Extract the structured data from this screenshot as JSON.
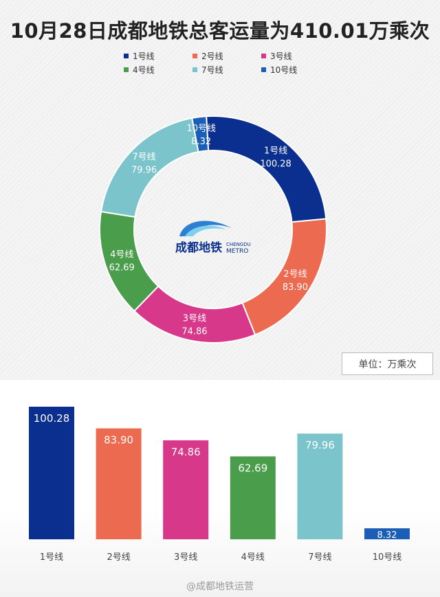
{
  "title": "10月28日成都地铁总客运量为410.01万乘次",
  "unit_label": "单位：万乘次",
  "logo": {
    "text_cn": "成都地铁",
    "text_en_top": "CHENGDU",
    "text_en_bottom": "METRO"
  },
  "watermark": "@成都地铁运营",
  "legend": [
    {
      "label": "1号线",
      "color": "#0b2f8f"
    },
    {
      "label": "2号线",
      "color": "#eb6a50"
    },
    {
      "label": "3号线",
      "color": "#d8388a"
    },
    {
      "label": "4号线",
      "color": "#4a9d4a"
    },
    {
      "label": "7号线",
      "color": "#7cc4cc"
    },
    {
      "label": "10号线",
      "color": "#1a5fb5"
    }
  ],
  "chart_data": [
    {
      "type": "pie",
      "style": "donut",
      "categories": [
        "1号线",
        "2号线",
        "3号线",
        "4号线",
        "7号线",
        "10号线"
      ],
      "values": [
        100.28,
        83.9,
        74.86,
        62.69,
        79.96,
        8.32
      ],
      "colors": [
        "#0b2f8f",
        "#eb6a50",
        "#d8388a",
        "#4a9d4a",
        "#7cc4cc",
        "#1a5fb5"
      ],
      "data_labels": [
        "100.28",
        "83.90",
        "74.86",
        "62.69",
        "79.96",
        "8.32"
      ],
      "legend_position": "top"
    },
    {
      "type": "bar",
      "categories": [
        "1号线",
        "2号线",
        "3号线",
        "4号线",
        "7号线",
        "10号线"
      ],
      "values": [
        100.28,
        83.9,
        74.86,
        62.69,
        79.96,
        8.32
      ],
      "colors": [
        "#0b2f8f",
        "#eb6a50",
        "#d8388a",
        "#4a9d4a",
        "#7cc4cc",
        "#1a5fb5"
      ],
      "data_labels": [
        "100.28",
        "83.90",
        "74.86",
        "62.69",
        "79.96",
        "8.32"
      ],
      "ylim": [
        0,
        100.28
      ],
      "grid": false
    }
  ]
}
